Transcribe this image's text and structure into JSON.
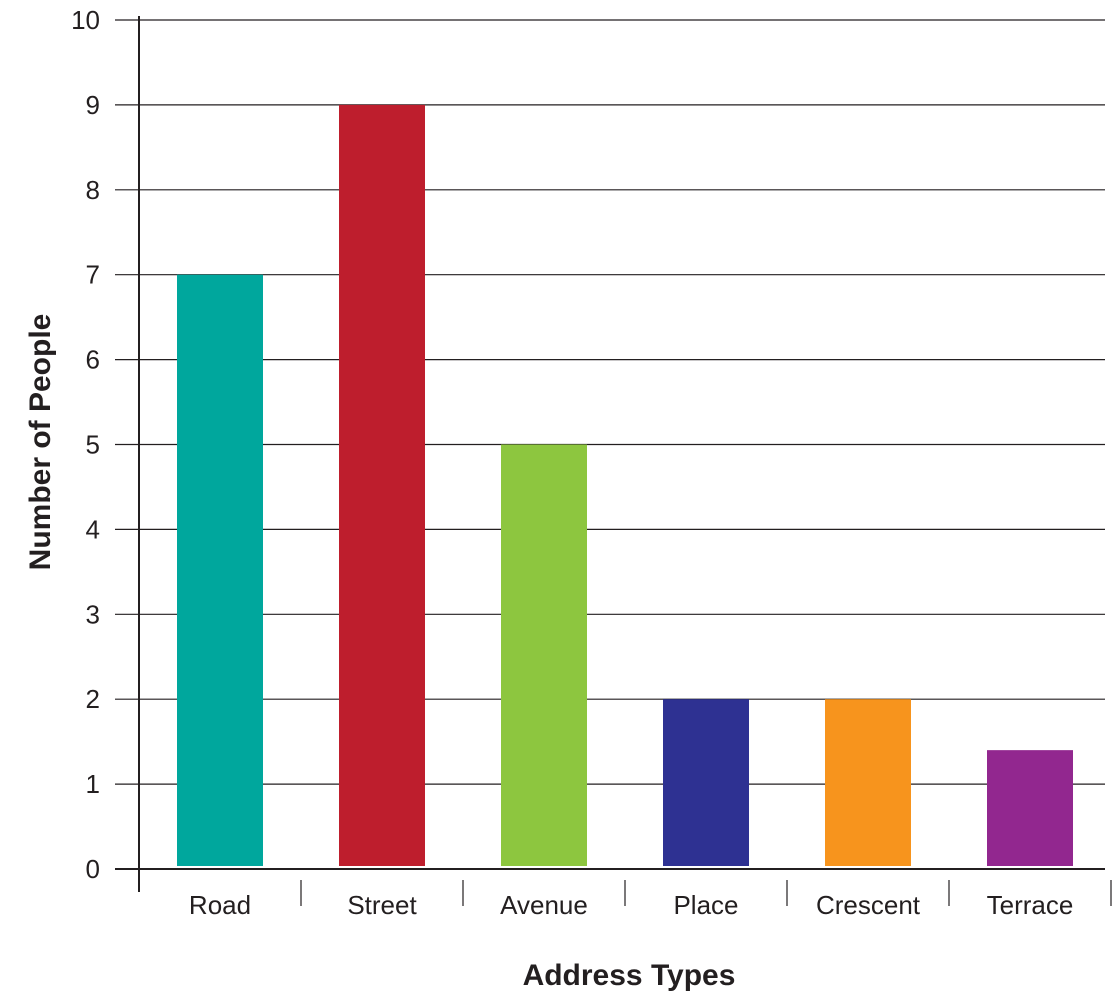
{
  "chart_data": {
    "type": "bar",
    "title": "",
    "xlabel": "Address Types",
    "ylabel": "Number of People",
    "categories": [
      "Road",
      "Street",
      "Avenue",
      "Place",
      "Crescent",
      "Terrace"
    ],
    "values": [
      7,
      9,
      5,
      2,
      2,
      1.4
    ],
    "colors": [
      "#00a79d",
      "#be1e2d",
      "#8dc63f",
      "#2e3192",
      "#f7941d",
      "#92278f"
    ],
    "ylim": [
      0,
      10
    ],
    "yticks": [
      0,
      1,
      2,
      3,
      4,
      5,
      6,
      7,
      8,
      9,
      10
    ],
    "grid": true,
    "legend": "none"
  }
}
